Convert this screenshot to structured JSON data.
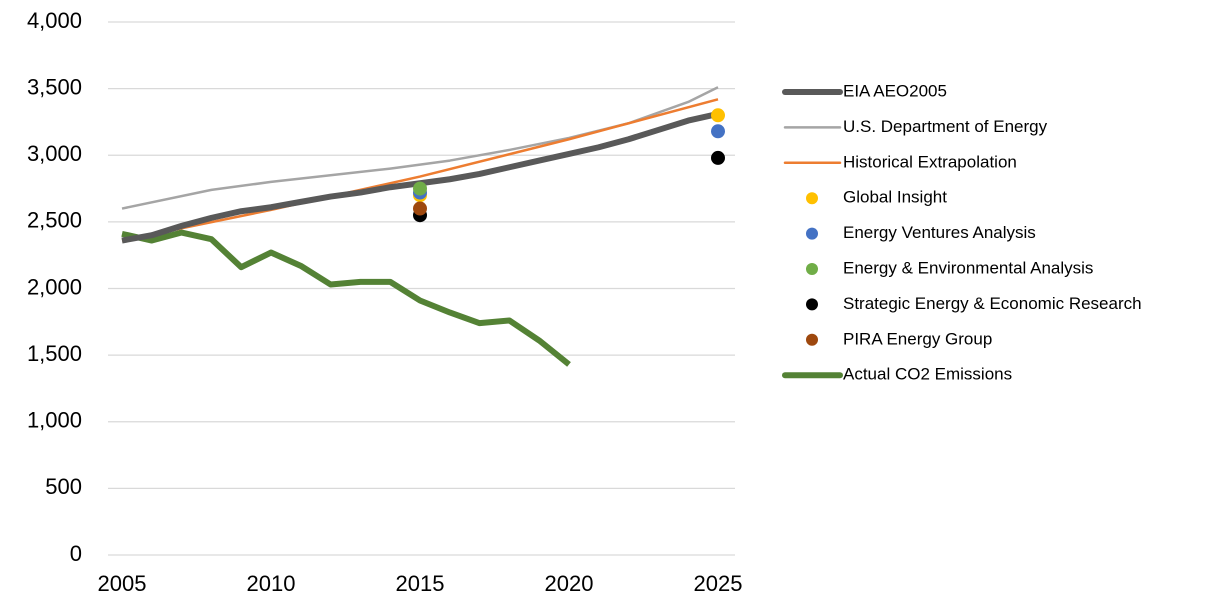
{
  "chart_data": {
    "type": "line",
    "xlim": [
      2005,
      2025
    ],
    "xticks": [
      2005,
      2010,
      2015,
      2020,
      2025
    ],
    "ylim": [
      0,
      4000
    ],
    "yticks": [
      0,
      500,
      {
        "value": 1000,
        "label": "1,000"
      },
      {
        "value": 1500,
        "label": "1,500"
      },
      {
        "value": 2000,
        "label": "2,000"
      },
      {
        "value": 2500,
        "label": "2,500"
      },
      {
        "value": 3000,
        "label": "3,000"
      },
      {
        "value": 3500,
        "label": "3,500"
      },
      {
        "value": 4000,
        "label": "4,000"
      }
    ],
    "grid": true,
    "legend": "right",
    "series": [
      {
        "name": "EIA AEO2005",
        "color": "#595959",
        "kind": "line",
        "width": 6,
        "x": [
          2005,
          2006,
          2007,
          2008,
          2009,
          2010,
          2011,
          2012,
          2013,
          2014,
          2015,
          2016,
          2017,
          2018,
          2019,
          2020,
          2021,
          2022,
          2023,
          2024,
          2025
        ],
        "values": [
          2360,
          2400,
          2470,
          2530,
          2580,
          2610,
          2650,
          2690,
          2720,
          2760,
          2790,
          2820,
          2860,
          2910,
          2960,
          3010,
          3060,
          3120,
          3190,
          3260,
          3310
        ]
      },
      {
        "name": "U.S. Department of Energy",
        "color": "#a5a5a5",
        "kind": "line",
        "width": 2.5,
        "x": [
          2005,
          2008,
          2010,
          2014,
          2016,
          2018,
          2020,
          2022,
          2024,
          2025
        ],
        "values": [
          2600,
          2740,
          2800,
          2900,
          2960,
          3040,
          3130,
          3240,
          3400,
          3510
        ]
      },
      {
        "name": "Historical Extrapolation",
        "color": "#ed7d31",
        "kind": "line",
        "width": 2.5,
        "x": [
          2005,
          2010,
          2015,
          2020,
          2025
        ],
        "values": [
          2360,
          2590,
          2840,
          3120,
          3420
        ]
      },
      {
        "name": "Global Insight",
        "color": "#ffc000",
        "kind": "scatter",
        "x": [
          2015,
          2025
        ],
        "values": [
          2700,
          3300
        ]
      },
      {
        "name": "Energy Ventures Analysis",
        "color": "#4472c4",
        "kind": "scatter",
        "x": [
          2015,
          2025
        ],
        "values": [
          2720,
          3180
        ]
      },
      {
        "name": "Energy & Environmental Analysis",
        "color": "#70ad47",
        "kind": "scatter",
        "x": [
          2015
        ],
        "values": [
          2750
        ]
      },
      {
        "name": "Strategic Energy & Economic Research",
        "color": "#000000",
        "kind": "scatter",
        "x": [
          2015,
          2025
        ],
        "values": [
          2550,
          2980
        ]
      },
      {
        "name": "PIRA Energy Group",
        "color": "#9e480e",
        "kind": "scatter",
        "x": [
          2015
        ],
        "values": [
          2600
        ]
      },
      {
        "name": "Actual CO2 Emissions",
        "color": "#548235",
        "kind": "line",
        "width": 6,
        "x": [
          2005,
          2006,
          2007,
          2008,
          2009,
          2010,
          2011,
          2012,
          2013,
          2014,
          2015,
          2016,
          2017,
          2018,
          2019,
          2020
        ],
        "values": [
          2410,
          2360,
          2420,
          2370,
          2160,
          2270,
          2170,
          2030,
          2050,
          2050,
          1910,
          1820,
          1740,
          1760,
          1610,
          1430
        ]
      }
    ]
  }
}
